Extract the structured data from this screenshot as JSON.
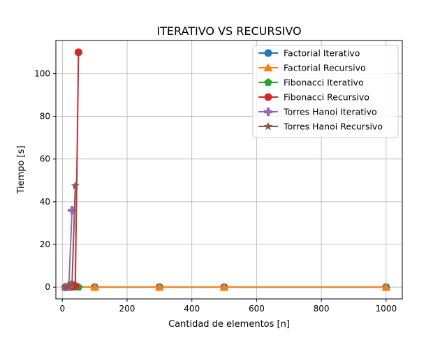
{
  "chart_data": {
    "type": "line",
    "title": "ITERATIVO VS RECURSIVO",
    "xlabel": "Cantidad de elementos [n]",
    "ylabel": "Tiempo [s]",
    "xlim": [
      -20,
      1050
    ],
    "ylim": [
      -5.5,
      115.5
    ],
    "xticks": [
      0,
      200,
      400,
      600,
      800,
      1000
    ],
    "yticks": [
      0,
      20,
      40,
      60,
      80,
      100
    ],
    "grid": true,
    "legend_position": "top-right",
    "series": [
      {
        "name": "Factorial Iterativo",
        "color": "#1f77b4",
        "marker": "circle",
        "x": [
          10,
          100,
          300,
          500,
          1000
        ],
        "y": [
          0,
          0,
          0,
          0,
          0
        ]
      },
      {
        "name": "Factorial Recursivo",
        "color": "#ff7f0e",
        "marker": "triangle",
        "x": [
          10,
          100,
          300,
          500,
          1000
        ],
        "y": [
          0,
          0,
          0,
          0,
          0
        ]
      },
      {
        "name": "Fibonacci Iterativo",
        "color": "#2ca02c",
        "marker": "pentagon",
        "x": [
          10,
          20,
          30,
          40,
          50
        ],
        "y": [
          0,
          0,
          0,
          0,
          0
        ]
      },
      {
        "name": "Fibonacci Recursivo",
        "color": "#d62728",
        "marker": "circle",
        "x": [
          10,
          20,
          30,
          40,
          50
        ],
        "y": [
          0,
          0,
          0.3,
          0.5,
          110
        ]
      },
      {
        "name": "Torres Hanoi Iterativo",
        "color": "#9467bd",
        "marker": "plus",
        "x": [
          10,
          20,
          30
        ],
        "y": [
          0,
          0.5,
          36
        ]
      },
      {
        "name": "Torres Hanoi Recursivo",
        "color": "#8c564b",
        "marker": "star",
        "x": [
          10,
          20,
          30,
          40
        ],
        "y": [
          0,
          0.3,
          2,
          47.5
        ]
      }
    ]
  }
}
